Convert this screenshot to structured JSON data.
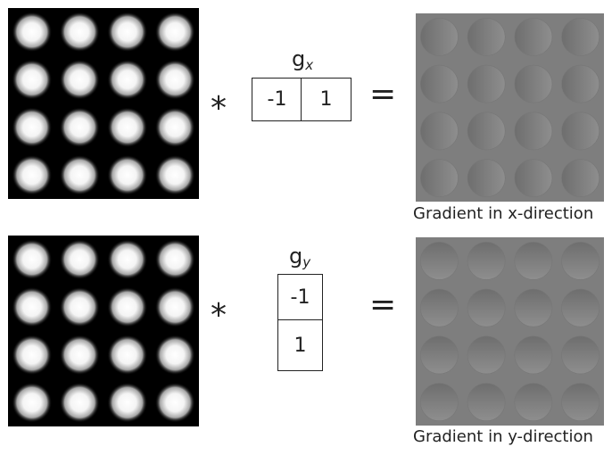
{
  "row_x": {
    "kernel_name": {
      "base": "g",
      "sub": "x"
    },
    "kernel_values": [
      "-1",
      "1"
    ],
    "operator": "*",
    "equals": "=",
    "caption": "Gradient in x-direction",
    "colors": {
      "input_bg": "#000000",
      "output_bg": "#7e7e7e"
    }
  },
  "row_y": {
    "kernel_name": {
      "base": "g",
      "sub": "y"
    },
    "kernel_values": [
      "-1",
      "1"
    ],
    "operator": "*",
    "equals": "=",
    "caption": "Gradient in y-direction",
    "colors": {
      "input_bg": "#000000",
      "output_bg": "#7e7e7e"
    }
  }
}
